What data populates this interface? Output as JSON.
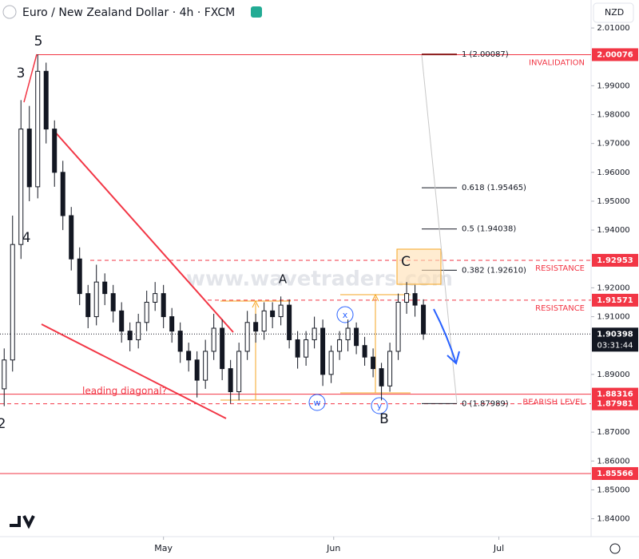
{
  "chart_data": {
    "type": "candlestick",
    "title": "Euro / New Zealand Dollar · 4h · FXCM",
    "currency": "NZD",
    "color": "#131722",
    "open": [
      1.885,
      1.895,
      1.935,
      1.975,
      1.955,
      1.995,
      1.975,
      1.96,
      1.945,
      1.93,
      1.918,
      1.91,
      1.922,
      1.918,
      1.912,
      1.905,
      1.902,
      1.908,
      1.915,
      1.918,
      1.91,
      1.905,
      1.898,
      1.895,
      1.888,
      1.898,
      1.906,
      1.892,
      1.884,
      1.898,
      1.908,
      1.905,
      1.912,
      1.91,
      1.914,
      1.902,
      1.896,
      1.902,
      1.906,
      1.89,
      1.898,
      1.902,
      1.906,
      1.9,
      1.896,
      1.892,
      1.886,
      1.898,
      1.915,
      1.918,
      1.914
    ],
    "high": [
      1.899,
      1.945,
      1.985,
      1.983,
      2.0009,
      1.998,
      1.978,
      1.964,
      1.948,
      1.934,
      1.921,
      1.928,
      1.925,
      1.921,
      1.915,
      1.908,
      1.911,
      1.919,
      1.922,
      1.921,
      1.913,
      1.908,
      1.901,
      1.898,
      1.902,
      1.911,
      1.909,
      1.895,
      1.901,
      1.912,
      1.911,
      1.915,
      1.915,
      1.917,
      1.916,
      1.905,
      1.905,
      1.91,
      1.909,
      1.9,
      1.905,
      1.909,
      1.908,
      1.903,
      1.899,
      1.894,
      1.901,
      1.918,
      1.922,
      1.921,
      1.916
    ],
    "low": [
      1.879,
      1.891,
      1.93,
      1.95,
      1.951,
      1.97,
      1.955,
      1.94,
      1.926,
      1.914,
      1.906,
      1.907,
      1.914,
      1.908,
      1.901,
      1.898,
      1.899,
      1.905,
      1.912,
      1.906,
      1.901,
      1.894,
      1.891,
      1.882,
      1.885,
      1.895,
      1.888,
      1.8799,
      1.881,
      1.895,
      1.901,
      1.902,
      1.906,
      1.907,
      1.899,
      1.892,
      1.893,
      1.899,
      1.886,
      1.887,
      1.895,
      1.898,
      1.897,
      1.893,
      1.889,
      1.881,
      1.884,
      1.895,
      1.911,
      1.91,
      1.902
    ],
    "close": [
      1.895,
      1.935,
      1.975,
      1.955,
      1.995,
      1.975,
      1.96,
      1.945,
      1.93,
      1.918,
      1.91,
      1.922,
      1.918,
      1.912,
      1.905,
      1.902,
      1.908,
      1.915,
      1.918,
      1.91,
      1.905,
      1.898,
      1.895,
      1.888,
      1.898,
      1.906,
      1.892,
      1.884,
      1.898,
      1.908,
      1.905,
      1.912,
      1.91,
      1.914,
      1.902,
      1.896,
      1.902,
      1.906,
      1.89,
      1.898,
      1.902,
      1.906,
      1.9,
      1.896,
      1.892,
      1.886,
      1.898,
      1.915,
      1.918,
      1.914,
      1.904
    ],
    "xlim": [
      -0.5,
      70
    ],
    "xticks": [
      {
        "value": 19,
        "label": "May"
      },
      {
        "value": 39.3,
        "label": "Jun"
      },
      {
        "value": 59,
        "label": "Jul"
      }
    ],
    "ylim": [
      1.8338,
      2.0197
    ],
    "yticks": [
      {
        "value": 2.01,
        "label": "2.01000"
      },
      {
        "value": 1.99,
        "label": "1.99000"
      },
      {
        "value": 1.98,
        "label": "1.98000"
      },
      {
        "value": 1.97,
        "label": "1.97000"
      },
      {
        "value": 1.96,
        "label": "1.96000"
      },
      {
        "value": 1.95,
        "label": "1.95000"
      },
      {
        "value": 1.94,
        "label": "1.94000"
      },
      {
        "value": 1.92,
        "label": "1.92000"
      },
      {
        "value": 1.91,
        "label": "1.91000"
      },
      {
        "value": 1.89,
        "label": "1.89000"
      },
      {
        "value": 1.87,
        "label": "1.87000"
      },
      {
        "value": 1.86,
        "label": "1.86000"
      },
      {
        "value": 1.85,
        "label": "1.85000"
      },
      {
        "value": 1.84,
        "label": "1.84000"
      }
    ],
    "price_levels": [
      {
        "value": 2.00076,
        "label": "2.00076",
        "color": "#f23645",
        "style": "solid",
        "note": "INVALIDATION"
      },
      {
        "value": 1.92953,
        "label": "1.92953",
        "color": "#f23645",
        "style": "dashed",
        "note": "RESISTANCE"
      },
      {
        "value": 1.91571,
        "label": "1.91571",
        "color": "#f23645",
        "style": "dashed",
        "note": "RESISTANCE"
      },
      {
        "value": 1.88316,
        "label": "1.88316",
        "color": "#f23645",
        "style": "solid",
        "note": "BEARISH LEVEL"
      },
      {
        "value": 1.87981,
        "label": "1.87981",
        "color": "#f23645",
        "style": "dashed"
      },
      {
        "value": 1.85566,
        "label": "1.85566",
        "color": "#f23645",
        "style": "solid"
      }
    ],
    "current_price": {
      "value": 1.90398,
      "label": "1.90398",
      "countdown": "03:31:44",
      "color": "#131722"
    },
    "fib_levels": [
      {
        "value": 2.00087,
        "label": "1 (2.00087)"
      },
      {
        "value": 1.95465,
        "label": "0.618 (1.95465)"
      },
      {
        "value": 1.94038,
        "label": "0.5 (1.94038)"
      },
      {
        "value": 1.9261,
        "label": "0.382 (1.92610)"
      },
      {
        "value": 1.87989,
        "label": "0 (1.87989)"
      }
    ],
    "watermark": "www.wavetraders.com",
    "annotations": {
      "diagonal": "leading diagonal?",
      "w5": "5",
      "w3": "3",
      "w4": "4",
      "w2": "2",
      "wA": "A",
      "wB": "B",
      "wC": "C",
      "cx": "x",
      "cw": "w",
      "cy": "y"
    }
  }
}
